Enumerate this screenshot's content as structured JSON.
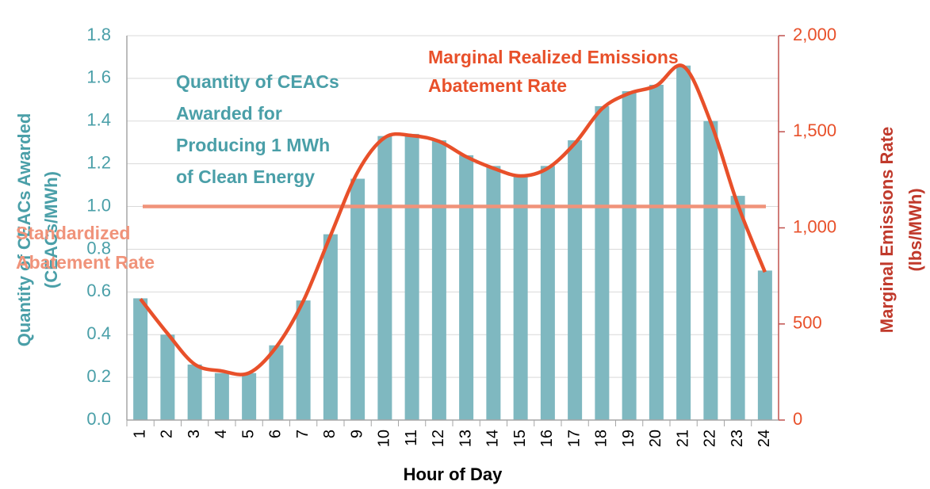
{
  "chart_data": {
    "type": "bar_line",
    "x_label": "Hour of Day",
    "y_label": [
      "Quantity of CEACs Awarded",
      "(CEACs/MWh)"
    ],
    "y2_label": [
      "Marginal Emissions Rate",
      "(lbs/MWh)"
    ],
    "categories": [
      "1",
      "2",
      "3",
      "4",
      "5",
      "6",
      "7",
      "8",
      "9",
      "10",
      "11",
      "12",
      "13",
      "14",
      "15",
      "16",
      "17",
      "18",
      "19",
      "20",
      "21",
      "22",
      "23",
      "24"
    ],
    "series": [
      {
        "name": [
          "Quantity of CEACs",
          "Awarded for",
          "Producing 1 MWh",
          "of Clean Energy"
        ],
        "type": "bar",
        "color": "#7fb8c0",
        "values": [
          0.57,
          0.4,
          0.26,
          0.22,
          0.22,
          0.35,
          0.56,
          0.87,
          1.13,
          1.33,
          1.34,
          1.31,
          1.24,
          1.19,
          1.14,
          1.19,
          1.31,
          1.47,
          1.54,
          1.57,
          1.66,
          1.4,
          1.05,
          0.7
        ]
      },
      {
        "name": [
          "Marginal Realized Emissions",
          "Abatement Rate"
        ],
        "type": "line",
        "axis": "y2",
        "color": "#e8502a",
        "values": [
          630,
          450,
          290,
          255,
          245,
          380,
          620,
          960,
          1290,
          1470,
          1480,
          1450,
          1370,
          1310,
          1270,
          1310,
          1440,
          1620,
          1700,
          1740,
          1840,
          1550,
          1120,
          770
        ]
      },
      {
        "name": [
          "Standardized",
          "Abatement Rate"
        ],
        "type": "hline",
        "color": "#f0937a",
        "value": 1.0
      }
    ],
    "ylim": [
      0,
      1.8
    ],
    "yticks": [
      {
        "value": 0,
        "label": "0.0"
      },
      {
        "value": 0.2,
        "label": "0.2"
      },
      {
        "value": 0.4,
        "label": "0.4"
      },
      {
        "value": 0.6,
        "label": "0.6"
      },
      {
        "value": 0.8,
        "label": "0.8"
      },
      {
        "value": 1.0,
        "label": "1.0"
      },
      {
        "value": 1.2,
        "label": "1.2"
      },
      {
        "value": 1.4,
        "label": "1.4"
      },
      {
        "value": 1.6,
        "label": "1.6"
      },
      {
        "value": 1.8,
        "label": "1.8"
      }
    ],
    "y2lim": [
      0,
      2000
    ],
    "y2ticks": [
      0,
      500,
      {
        "value": 1000,
        "label": "1,000"
      },
      {
        "value": 1500,
        "label": "1,500"
      },
      {
        "value": 2000,
        "label": "2,000"
      }
    ],
    "grid": true
  }
}
